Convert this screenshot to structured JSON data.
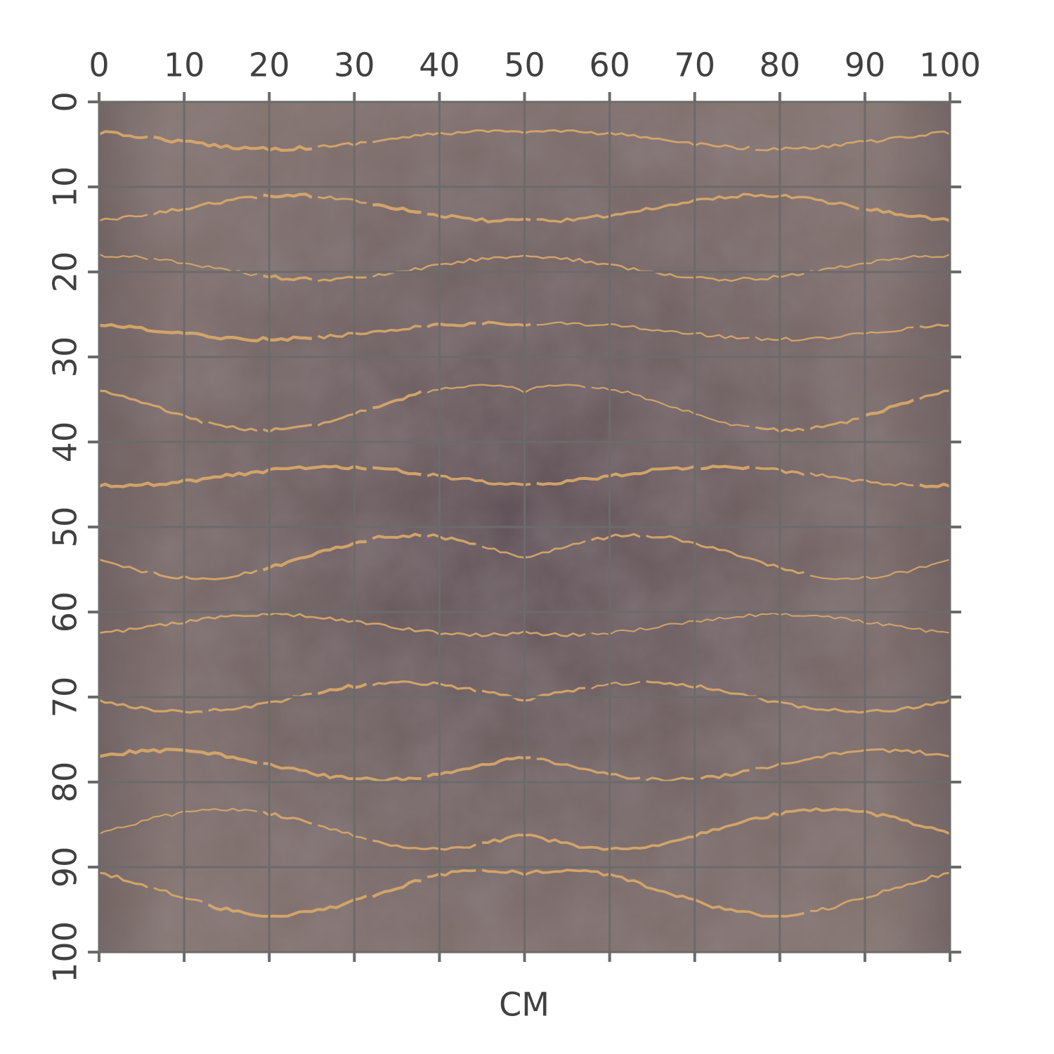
{
  "ruler": {
    "x_ticks": [
      0,
      10,
      20,
      30,
      40,
      50,
      60,
      70,
      80,
      90,
      100
    ],
    "y_ticks": [
      0,
      10,
      20,
      30,
      40,
      50,
      60,
      70,
      80,
      90,
      100
    ],
    "unit": "CM"
  }
}
